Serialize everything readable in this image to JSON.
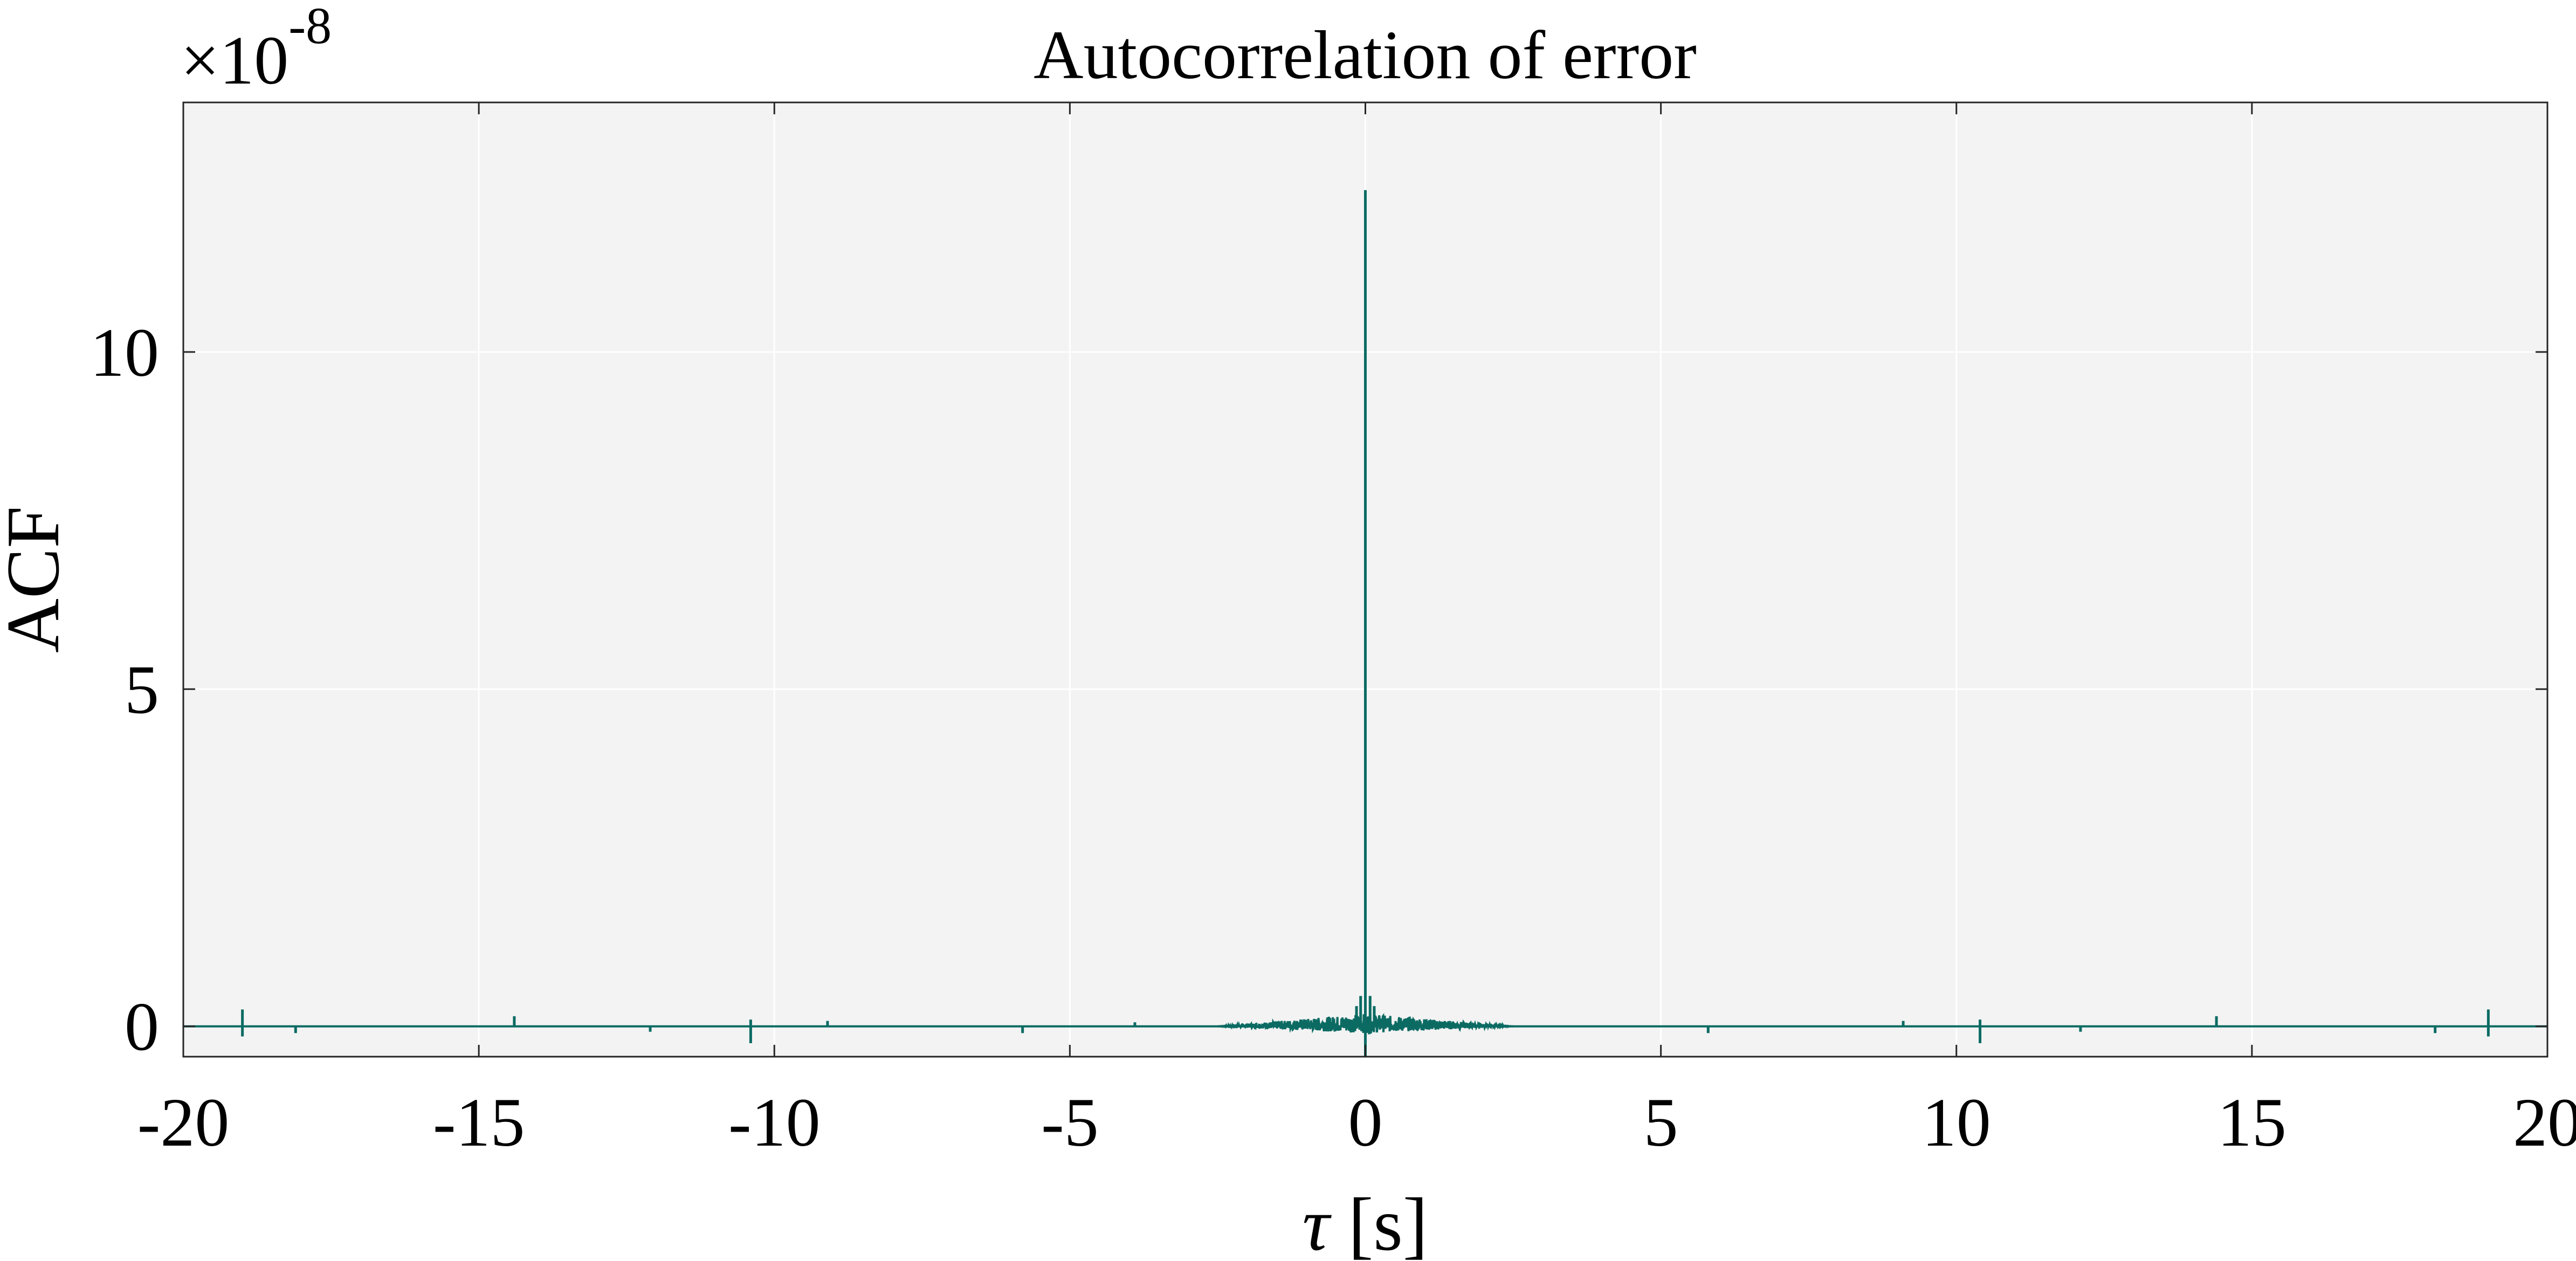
{
  "chart_data": {
    "type": "line",
    "title": "Autocorrelation of error",
    "xlabel_symbol": "τ",
    "xlabel_unit": "[s]",
    "ylabel": "ACF",
    "y_exponent_prefix": "×10",
    "y_exponent": "-8",
    "xlim": [
      -20,
      20
    ],
    "ylim": [
      -0.45,
      13.7
    ],
    "xticks": [
      -20,
      -15,
      -10,
      -5,
      0,
      5,
      10,
      15,
      20
    ],
    "xtick_labels": [
      "-20",
      "-15",
      "-10",
      "-5",
      "0",
      "5",
      "10",
      "15",
      "20"
    ],
    "yticks": [
      0,
      5,
      10
    ],
    "ytick_labels": [
      "0",
      "5",
      "10"
    ],
    "grid": true,
    "series": [
      {
        "color": "#0b6b63",
        "baseline": 0,
        "peak": {
          "x": 0,
          "y": 12.4
        },
        "spikes": [
          {
            "x": -19.0,
            "y": 0.25
          },
          {
            "x": -19.0,
            "y": -0.15
          },
          {
            "x": -18.1,
            "y": -0.1
          },
          {
            "x": -14.4,
            "y": 0.15
          },
          {
            "x": -12.1,
            "y": -0.08
          },
          {
            "x": -10.4,
            "y": -0.25
          },
          {
            "x": -10.4,
            "y": 0.1
          },
          {
            "x": -9.1,
            "y": 0.08
          },
          {
            "x": -5.8,
            "y": -0.1
          },
          {
            "x": -3.9,
            "y": 0.06
          },
          {
            "x": 5.8,
            "y": -0.1
          },
          {
            "x": 9.1,
            "y": 0.08
          },
          {
            "x": 10.4,
            "y": -0.25
          },
          {
            "x": 10.4,
            "y": 0.1
          },
          {
            "x": 12.1,
            "y": -0.08
          },
          {
            "x": 14.4,
            "y": 0.15
          },
          {
            "x": 18.1,
            "y": -0.1
          },
          {
            "x": 19.0,
            "y": 0.25
          },
          {
            "x": 19.0,
            "y": -0.15
          }
        ],
        "near_peak_spikes": [
          {
            "x": -0.08,
            "y": 0.45
          },
          {
            "x": 0.08,
            "y": 0.45
          },
          {
            "x": -0.15,
            "y": 0.3
          },
          {
            "x": 0.15,
            "y": 0.3
          },
          {
            "x": 0,
            "y": -0.45
          }
        ],
        "noise_band": {
          "xmin": -2.5,
          "xmax": 2.5,
          "amplitude": 0.18
        }
      }
    ]
  },
  "colors": {
    "plot_background": "#f3f3f3",
    "grid": "#ffffff",
    "axes": "#262626"
  }
}
